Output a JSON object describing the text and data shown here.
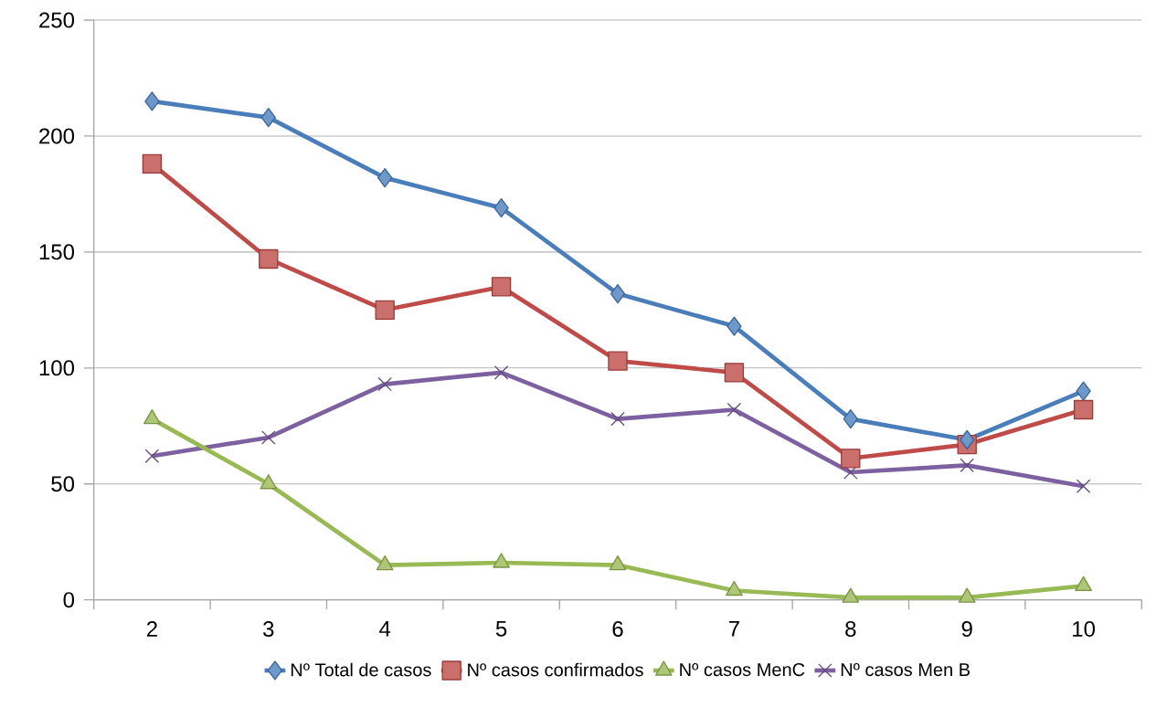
{
  "chart_data": {
    "type": "line",
    "categories": [
      "2",
      "3",
      "4",
      "5",
      "6",
      "7",
      "8",
      "9",
      "10"
    ],
    "series": [
      {
        "name": "Nº Total de casos",
        "color": "#4a7ebb",
        "marker": "diamond",
        "values": [
          215,
          208,
          182,
          169,
          132,
          118,
          78,
          69,
          90
        ]
      },
      {
        "name": "Nº casos confirmados",
        "color": "#be4b48",
        "marker": "square",
        "values": [
          188,
          147,
          125,
          135,
          103,
          98,
          61,
          67,
          82
        ]
      },
      {
        "name": "Nº casos MenC",
        "color": "#98b954",
        "marker": "triangle",
        "values": [
          78,
          50,
          15,
          16,
          15,
          4,
          1,
          1,
          6
        ]
      },
      {
        "name": "Nº casos Men B",
        "color": "#7d60a0",
        "marker": "cross",
        "values": [
          62,
          70,
          93,
          98,
          78,
          82,
          55,
          58,
          49
        ]
      }
    ],
    "ylim": [
      0,
      250
    ],
    "yticks": [
      0,
      50,
      100,
      150,
      200,
      250
    ],
    "grid": "y",
    "legend": "bottom",
    "line_style": "solid"
  }
}
